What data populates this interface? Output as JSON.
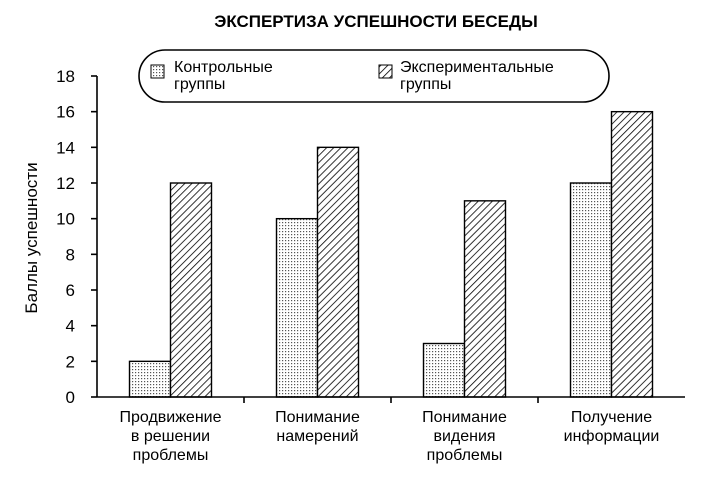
{
  "chart_data": {
    "type": "bar",
    "title": "ЭКСПЕРТИЗА УСПЕШНОСТИ БЕСЕДЫ",
    "xlabel": "",
    "ylabel": "Баллы успешности",
    "ylim": [
      0,
      18
    ],
    "yticks": [
      0,
      2,
      4,
      6,
      8,
      10,
      12,
      14,
      16,
      18
    ],
    "grid": false,
    "legend_position": "top",
    "categories": [
      [
        "Продвижение",
        "в решении",
        "проблемы"
      ],
      [
        "Понимание",
        "намерений"
      ],
      [
        "Понимание",
        "видения",
        "проблемы"
      ],
      [
        "Получение",
        "информации"
      ]
    ],
    "series": [
      {
        "name": [
          "Контрольные",
          "группы"
        ],
        "pattern": "dots",
        "values": [
          2,
          10,
          3,
          12
        ]
      },
      {
        "name": [
          "Экспериментальные",
          "группы"
        ],
        "pattern": "hatch",
        "values": [
          12,
          14,
          11,
          16
        ]
      }
    ]
  }
}
